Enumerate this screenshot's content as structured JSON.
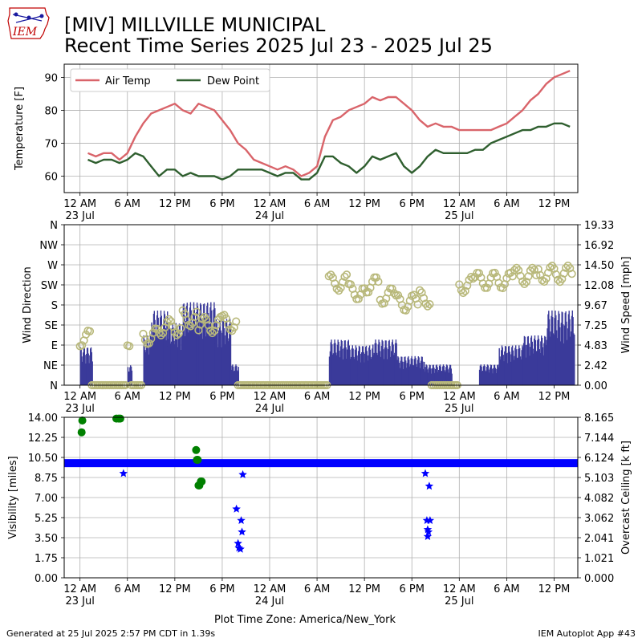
{
  "header": {
    "logo_text": "IEM",
    "title_line1": "[MIV] MILLVILLE MUNICIPAL",
    "title_line2": "Recent Time Series 2025 Jul 23 - 2025 Jul 25"
  },
  "footer": {
    "left": "Generated at 25 Jul 2025 2:57 PM CDT in 1.39s",
    "right": "IEM Autoplot App #43"
  },
  "colors": {
    "air_temp": "#d9646a",
    "dew_point": "#2f5f2f",
    "wind_speed_bars": "#3a3a9a",
    "wind_direction": "#b8b87a",
    "visibility": "#0000ff",
    "ceiling": "#008000",
    "grid": "#b0b0b0"
  },
  "chart_data": [
    {
      "id": "temperature",
      "type": "line",
      "ylabel": "Temperature [F]",
      "ylim": [
        55,
        94
      ],
      "yticks": [
        "60",
        "70",
        "80",
        "90"
      ],
      "ytick_values": [
        60,
        70,
        80,
        90
      ],
      "grid": true,
      "legend": "top-left",
      "x_tick_labels": [
        "12 AM",
        "6 AM",
        "12 PM",
        "6 PM",
        "12 AM",
        "6 AM",
        "12 PM",
        "6 PM",
        "12 AM",
        "6 AM",
        "12 PM"
      ],
      "x_date_labels": [
        "23 Jul",
        "24 Jul",
        "25 Jul"
      ],
      "series": [
        {
          "name": "Air Temp",
          "values": [
            [
              1,
              67
            ],
            [
              2,
              66
            ],
            [
              3,
              67
            ],
            [
              4,
              67
            ],
            [
              5,
              65
            ],
            [
              6,
              67
            ],
            [
              7,
              72
            ],
            [
              8,
              76
            ],
            [
              9,
              79
            ],
            [
              10,
              80
            ],
            [
              11,
              81
            ],
            [
              12,
              82
            ],
            [
              13,
              80
            ],
            [
              14,
              79
            ],
            [
              15,
              82
            ],
            [
              16,
              81
            ],
            [
              17,
              80
            ],
            [
              18,
              77
            ],
            [
              19,
              74
            ],
            [
              20,
              70
            ],
            [
              21,
              68
            ],
            [
              22,
              65
            ],
            [
              23,
              64
            ],
            [
              24,
              63
            ],
            [
              25,
              62
            ],
            [
              26,
              63
            ],
            [
              27,
              62
            ],
            [
              28,
              60
            ],
            [
              29,
              61
            ],
            [
              30,
              63
            ],
            [
              31,
              72
            ],
            [
              32,
              77
            ],
            [
              33,
              78
            ],
            [
              34,
              80
            ],
            [
              35,
              81
            ],
            [
              36,
              82
            ],
            [
              37,
              84
            ],
            [
              38,
              83
            ],
            [
              39,
              84
            ],
            [
              40,
              84
            ],
            [
              41,
              82
            ],
            [
              42,
              80
            ],
            [
              43,
              77
            ],
            [
              44,
              75
            ],
            [
              45,
              76
            ],
            [
              46,
              75
            ],
            [
              47,
              75
            ],
            [
              48,
              74
            ],
            [
              49,
              74
            ],
            [
              50,
              74
            ],
            [
              51,
              74
            ],
            [
              52,
              74
            ],
            [
              53,
              75
            ],
            [
              54,
              76
            ],
            [
              55,
              78
            ],
            [
              56,
              80
            ],
            [
              57,
              83
            ],
            [
              58,
              85
            ],
            [
              59,
              88
            ],
            [
              60,
              90
            ],
            [
              61,
              91
            ],
            [
              62,
              92
            ]
          ]
        },
        {
          "name": "Dew Point",
          "values": [
            [
              1,
              65
            ],
            [
              2,
              64
            ],
            [
              3,
              65
            ],
            [
              4,
              65
            ],
            [
              5,
              64
            ],
            [
              6,
              65
            ],
            [
              7,
              67
            ],
            [
              8,
              66
            ],
            [
              9,
              63
            ],
            [
              10,
              60
            ],
            [
              11,
              62
            ],
            [
              12,
              62
            ],
            [
              13,
              60
            ],
            [
              14,
              61
            ],
            [
              15,
              60
            ],
            [
              16,
              60
            ],
            [
              17,
              60
            ],
            [
              18,
              59
            ],
            [
              19,
              60
            ],
            [
              20,
              62
            ],
            [
              21,
              62
            ],
            [
              22,
              62
            ],
            [
              23,
              62
            ],
            [
              24,
              61
            ],
            [
              25,
              60
            ],
            [
              26,
              61
            ],
            [
              27,
              61
            ],
            [
              28,
              59
            ],
            [
              29,
              59
            ],
            [
              30,
              61
            ],
            [
              31,
              66
            ],
            [
              32,
              66
            ],
            [
              33,
              64
            ],
            [
              34,
              63
            ],
            [
              35,
              61
            ],
            [
              36,
              63
            ],
            [
              37,
              66
            ],
            [
              38,
              65
            ],
            [
              39,
              66
            ],
            [
              40,
              67
            ],
            [
              41,
              63
            ],
            [
              42,
              61
            ],
            [
              43,
              63
            ],
            [
              44,
              66
            ],
            [
              45,
              68
            ],
            [
              46,
              67
            ],
            [
              47,
              67
            ],
            [
              48,
              67
            ],
            [
              49,
              67
            ],
            [
              50,
              68
            ],
            [
              51,
              68
            ],
            [
              52,
              70
            ],
            [
              53,
              71
            ],
            [
              54,
              72
            ],
            [
              55,
              73
            ],
            [
              56,
              74
            ],
            [
              57,
              74
            ],
            [
              58,
              75
            ],
            [
              59,
              75
            ],
            [
              60,
              76
            ],
            [
              61,
              76
            ],
            [
              62,
              75
            ]
          ]
        }
      ]
    },
    {
      "id": "wind",
      "type": "bar",
      "ylabel": "Wind Direction",
      "y2label": "Wind Speed [mph]",
      "ylim": [
        0,
        360
      ],
      "yticks": [
        "N",
        "NE",
        "E",
        "SE",
        "S",
        "SW",
        "W",
        "NW",
        "N"
      ],
      "y2lim": [
        0,
        19.33
      ],
      "y2ticks": [
        "0.00",
        "2.42",
        "4.83",
        "7.25",
        "9.67",
        "12.08",
        "14.50",
        "16.92",
        "19.33"
      ],
      "grid": true,
      "x_tick_labels": [
        "12 AM",
        "6 AM",
        "12 PM",
        "6 PM",
        "12 AM",
        "6 AM",
        "12 PM",
        "6 PM",
        "12 AM",
        "6 AM",
        "12 PM"
      ],
      "x_date_labels": [
        "23 Jul",
        "24 Jul",
        "25 Jul"
      ],
      "speed_segments": [
        {
          "t0": 0.0,
          "t1": 1.5,
          "v": 4.6
        },
        {
          "t0": 1.5,
          "t1": 6.0,
          "v": 0.2
        },
        {
          "t0": 6.0,
          "t1": 6.5,
          "v": 2.4
        },
        {
          "t0": 6.5,
          "t1": 8.0,
          "v": 0.2
        },
        {
          "t0": 8.0,
          "t1": 9.0,
          "v": 6.0
        },
        {
          "t0": 9.0,
          "t1": 11.0,
          "v": 9.0
        },
        {
          "t0": 11.0,
          "t1": 13.0,
          "v": 7.5
        },
        {
          "t0": 13.0,
          "t1": 15.0,
          "v": 10.0
        },
        {
          "t0": 15.0,
          "t1": 17.0,
          "v": 10.0
        },
        {
          "t0": 17.0,
          "t1": 19.0,
          "v": 8.0
        },
        {
          "t0": 19.0,
          "t1": 20.0,
          "v": 2.5
        },
        {
          "t0": 20.0,
          "t1": 31.5,
          "v": 0.2
        },
        {
          "t0": 31.5,
          "t1": 34.0,
          "v": 5.5
        },
        {
          "t0": 34.0,
          "t1": 37.0,
          "v": 4.8
        },
        {
          "t0": 37.0,
          "t1": 40.0,
          "v": 5.5
        },
        {
          "t0": 40.0,
          "t1": 43.5,
          "v": 3.5
        },
        {
          "t0": 43.5,
          "t1": 47.0,
          "v": 2.5
        },
        {
          "t0": 47.0,
          "t1": 50.5,
          "v": 0.3
        },
        {
          "t0": 50.5,
          "t1": 53.0,
          "v": 2.5
        },
        {
          "t0": 53.0,
          "t1": 56.0,
          "v": 4.8
        },
        {
          "t0": 56.0,
          "t1": 59.0,
          "v": 6.0
        },
        {
          "t0": 59.0,
          "t1": 62.5,
          "v": 9.0
        }
      ],
      "direction_segments": [
        {
          "t0": 0.0,
          "t1": 1.5,
          "d": 105
        },
        {
          "t0": 1.5,
          "t1": 6.0,
          "d": 0
        },
        {
          "t0": 6.0,
          "t1": 6.5,
          "d": 105
        },
        {
          "t0": 6.5,
          "t1": 8.0,
          "d": 0
        },
        {
          "t0": 8.0,
          "t1": 10.0,
          "d": 110
        },
        {
          "t0": 10.0,
          "t1": 13.0,
          "d": 130
        },
        {
          "t0": 13.0,
          "t1": 15.0,
          "d": 150
        },
        {
          "t0": 15.0,
          "t1": 18.0,
          "d": 135
        },
        {
          "t0": 18.0,
          "t1": 20.0,
          "d": 140
        },
        {
          "t0": 20.0,
          "t1": 31.5,
          "d": 0
        },
        {
          "t0": 31.5,
          "t1": 34.0,
          "d": 230
        },
        {
          "t0": 34.0,
          "t1": 36.0,
          "d": 210
        },
        {
          "t0": 36.0,
          "t1": 38.0,
          "d": 225
        },
        {
          "t0": 38.0,
          "t1": 40.0,
          "d": 200
        },
        {
          "t0": 40.0,
          "t1": 43.0,
          "d": 185
        },
        {
          "t0": 43.0,
          "t1": 44.5,
          "d": 195
        },
        {
          "t0": 44.5,
          "t1": 48.0,
          "d": 0
        },
        {
          "t0": 48.0,
          "t1": 50.0,
          "d": 225
        },
        {
          "t0": 50.0,
          "t1": 55.0,
          "d": 235
        },
        {
          "t0": 55.0,
          "t1": 58.0,
          "d": 245
        },
        {
          "t0": 58.0,
          "t1": 62.5,
          "d": 250
        }
      ]
    },
    {
      "id": "visibility",
      "type": "scatter",
      "ylabel": "Visibility [miles]",
      "y2label": "Overcast Ceiling [k ft]",
      "ylim": [
        0,
        14
      ],
      "yticks": [
        "0.00",
        "1.75",
        "3.50",
        "5.25",
        "7.00",
        "8.75",
        "10.50",
        "12.25",
        "14.00"
      ],
      "y2lim": [
        0,
        8.165
      ],
      "y2ticks": [
        "0.000",
        "1.021",
        "2.041",
        "3.062",
        "4.082",
        "5.103",
        "6.124",
        "7.144",
        "8.165"
      ],
      "grid": true,
      "xlabel": "Plot Time Zone: America/New_York",
      "x_tick_labels": [
        "12 AM",
        "6 AM",
        "12 PM",
        "6 PM",
        "12 AM",
        "6 AM",
        "12 PM",
        "6 PM",
        "12 AM",
        "6 AM",
        "12 PM"
      ],
      "x_date_labels": [
        "23 Jul",
        "24 Jul",
        "25 Jul"
      ],
      "visibility_baseline": 10.0,
      "visibility_drops": [
        [
          5.5,
          9.1
        ],
        [
          19.8,
          6.0
        ],
        [
          20.0,
          3.0
        ],
        [
          20.1,
          2.6
        ],
        [
          20.3,
          2.5
        ],
        [
          20.4,
          5.0
        ],
        [
          20.5,
          4.0
        ],
        [
          20.6,
          9.0
        ],
        [
          43.7,
          9.1
        ],
        [
          43.9,
          5.0
        ],
        [
          44.0,
          4.2
        ],
        [
          44.0,
          3.6
        ],
        [
          44.1,
          4.0
        ],
        [
          44.2,
          8.0
        ],
        [
          44.3,
          5.0
        ]
      ],
      "ceiling_points": [
        [
          0.2,
          7.4
        ],
        [
          0.3,
          8.0
        ],
        [
          4.6,
          8.1
        ],
        [
          4.9,
          8.1
        ],
        [
          5.1,
          8.1
        ],
        [
          14.7,
          6.5
        ],
        [
          14.8,
          6.0
        ],
        [
          14.9,
          6.0
        ],
        [
          15.0,
          4.7
        ],
        [
          15.1,
          4.7
        ],
        [
          15.3,
          4.9
        ],
        [
          15.4,
          4.9
        ]
      ]
    }
  ]
}
